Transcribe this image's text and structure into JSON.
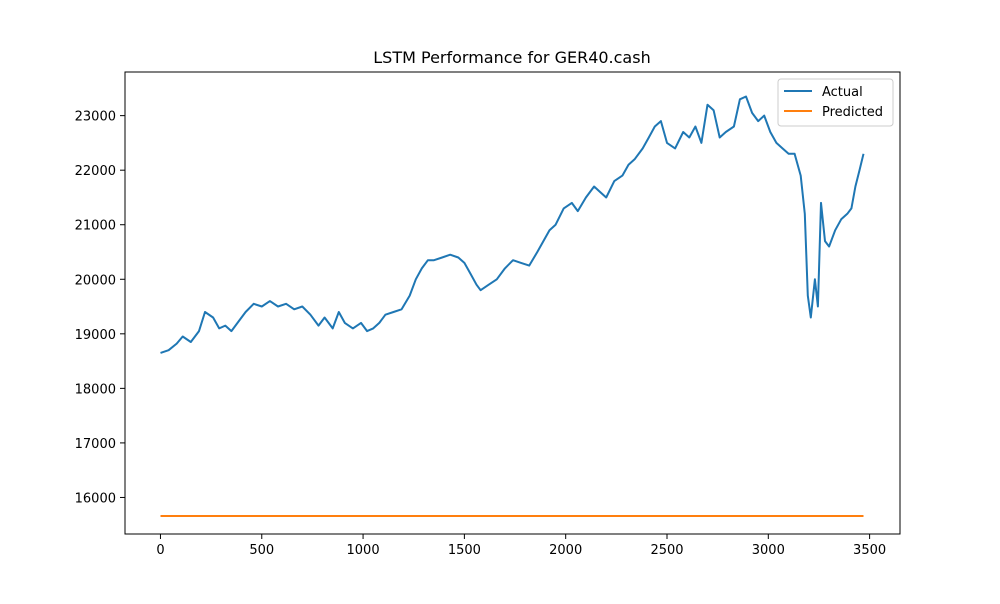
{
  "chart_data": {
    "type": "line",
    "title": "LSTM Performance for GER40.cash",
    "xlabel": "",
    "ylabel": "",
    "xlim": [
      -175,
      3650
    ],
    "ylim": [
      15330,
      23800
    ],
    "x_ticks": [
      0,
      500,
      1000,
      1500,
      2000,
      2500,
      3000,
      3500
    ],
    "y_ticks": [
      16000,
      17000,
      18000,
      19000,
      20000,
      21000,
      22000,
      23000
    ],
    "grid": false,
    "legend_position": "top-right",
    "series": [
      {
        "name": "Actual",
        "color": "#1f77b4",
        "x": [
          0,
          40,
          80,
          110,
          150,
          190,
          220,
          260,
          290,
          320,
          350,
          380,
          420,
          460,
          500,
          540,
          580,
          620,
          660,
          700,
          740,
          780,
          810,
          850,
          880,
          910,
          950,
          990,
          1020,
          1050,
          1080,
          1110,
          1150,
          1190,
          1230,
          1260,
          1290,
          1320,
          1350,
          1390,
          1430,
          1470,
          1500,
          1530,
          1560,
          1580,
          1620,
          1660,
          1700,
          1740,
          1780,
          1820,
          1860,
          1890,
          1920,
          1950,
          1990,
          2030,
          2060,
          2100,
          2140,
          2170,
          2200,
          2240,
          2280,
          2310,
          2340,
          2380,
          2410,
          2440,
          2470,
          2500,
          2540,
          2580,
          2610,
          2640,
          2670,
          2700,
          2730,
          2760,
          2790,
          2830,
          2860,
          2890,
          2920,
          2950,
          2980,
          3010,
          3040,
          3070,
          3100,
          3130,
          3160,
          3180,
          3195,
          3210,
          3230,
          3245,
          3260,
          3280,
          3300,
          3330,
          3360,
          3390,
          3410,
          3430,
          3450,
          3470
        ],
        "y": [
          18650,
          18700,
          18820,
          18950,
          18850,
          19050,
          19400,
          19300,
          19100,
          19150,
          19050,
          19200,
          19400,
          19550,
          19500,
          19600,
          19500,
          19550,
          19450,
          19500,
          19350,
          19150,
          19300,
          19100,
          19400,
          19200,
          19100,
          19200,
          19050,
          19100,
          19200,
          19350,
          19400,
          19450,
          19700,
          20000,
          20200,
          20350,
          20350,
          20400,
          20450,
          20400,
          20300,
          20100,
          19900,
          19800,
          19900,
          20000,
          20200,
          20350,
          20300,
          20250,
          20500,
          20700,
          20900,
          21000,
          21300,
          21400,
          21250,
          21500,
          21700,
          21600,
          21500,
          21800,
          21900,
          22100,
          22200,
          22400,
          22600,
          22800,
          22900,
          22500,
          22400,
          22700,
          22600,
          22800,
          22500,
          23200,
          23100,
          22600,
          22700,
          22800,
          23300,
          23350,
          23050,
          22900,
          23000,
          22700,
          22500,
          22400,
          22300,
          22300,
          21900,
          21200,
          19700,
          19300,
          20000,
          19500,
          21400,
          20700,
          20600,
          20900,
          21100,
          21200,
          21300,
          21700,
          22000,
          22300
        ]
      },
      {
        "name": "Predicted",
        "color": "#ff7f0e",
        "x": [
          0,
          3470
        ],
        "y": [
          15660,
          15660
        ]
      }
    ]
  }
}
